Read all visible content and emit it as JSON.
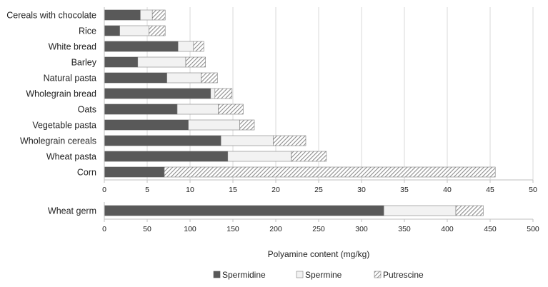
{
  "colors": {
    "spermidine": "#595959",
    "spermine": "#f2f2f2",
    "putrescine_hatch": "#8c8c8c",
    "grid": "#d9d9d9",
    "axis": "#bfbfbf"
  },
  "chart_data": [
    {
      "type": "bar",
      "orientation": "horizontal",
      "stacked": true,
      "categories": [
        "Cereals with chocolate",
        "Rice",
        "White bread",
        "Barley",
        "Natural pasta",
        "Wholegrain bread",
        "Oats",
        "Vegetable pasta",
        "Wholegrain cereals",
        "Wheat pasta",
        "Corn"
      ],
      "series": [
        {
          "name": "Spermidine",
          "values": [
            4.2,
            1.8,
            8.6,
            3.9,
            7.3,
            12.4,
            8.5,
            9.8,
            13.6,
            14.4,
            7.0
          ]
        },
        {
          "name": "Spermine",
          "values": [
            1.4,
            3.4,
            1.8,
            5.6,
            4.0,
            0.5,
            4.8,
            6.0,
            6.1,
            7.4,
            0.0
          ]
        },
        {
          "name": "Putrescine",
          "values": [
            1.5,
            1.9,
            1.2,
            2.3,
            1.9,
            2.0,
            2.9,
            1.7,
            3.8,
            4.1,
            38.6
          ]
        }
      ],
      "xlim": [
        0,
        50
      ],
      "xticks": [
        "0",
        "5",
        "10",
        "15",
        "20",
        "25",
        "30",
        "35",
        "40",
        "45",
        "50"
      ],
      "grid": true
    },
    {
      "type": "bar",
      "orientation": "horizontal",
      "stacked": true,
      "categories": [
        "Wheat germ"
      ],
      "series": [
        {
          "name": "Spermidine",
          "values": [
            326
          ]
        },
        {
          "name": "Spermine",
          "values": [
            84
          ]
        },
        {
          "name": "Putrescine",
          "values": [
            32
          ]
        }
      ],
      "xlim": [
        0,
        500
      ],
      "xticks": [
        "0",
        "50",
        "100",
        "150",
        "200",
        "250",
        "300",
        "350",
        "400",
        "450",
        "500"
      ],
      "grid": false
    }
  ],
  "xlabel": "Polyamine content (mg/kg)",
  "legend": [
    "Spermidine",
    "Spermine",
    "Putrescine"
  ],
  "legend_position": "bottom"
}
